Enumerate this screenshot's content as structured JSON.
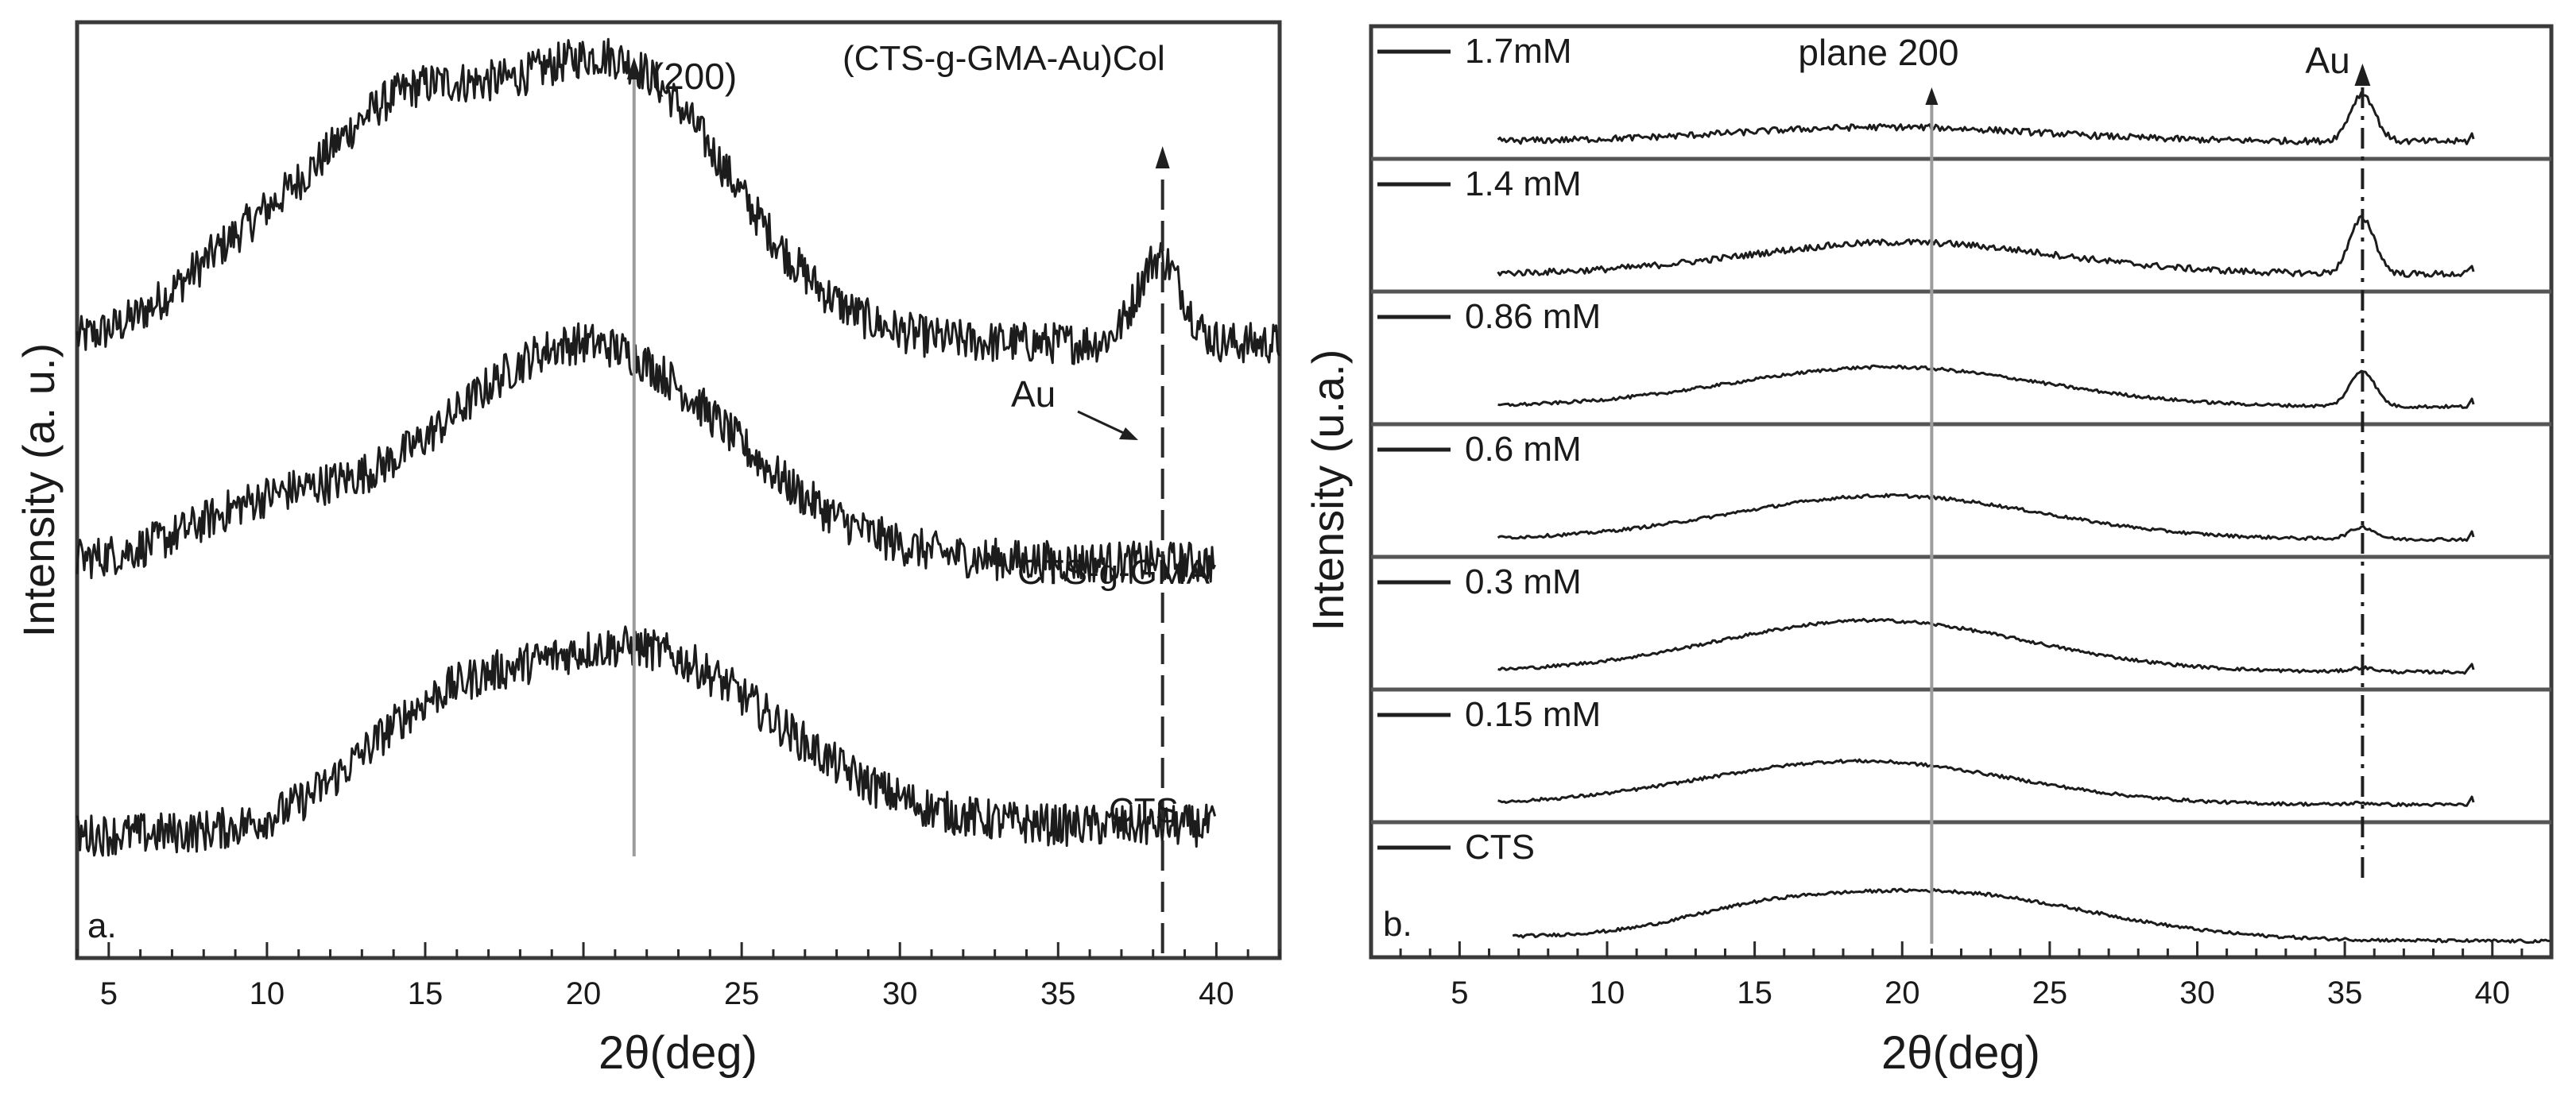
{
  "chart_data": [
    {
      "type": "line",
      "panel": "a.",
      "xlabel": "2θ(deg)",
      "ylabel": "Intensity (a. u.)",
      "xlim": [
        4,
        42
      ],
      "x_ticks": [
        5,
        10,
        15,
        20,
        25,
        30,
        35,
        40
      ],
      "y_ticks": [],
      "x_range_data": [
        4,
        40
      ],
      "series": [
        {
          "name": "(CTS-g-GMA-Au)Col",
          "label": "(CTS-g-GMA-Au)Col",
          "offset": 2.4,
          "peaks": [
            {
              "x": 9,
              "h": 0.35,
              "w": 2.2
            },
            {
              "x": 14,
              "h": 1.05,
              "w": 2.8
            },
            {
              "x": 21,
              "h": 1.45,
              "w": 3.6
            },
            {
              "x": 38.2,
              "h": 0.45,
              "w": 0.7
            }
          ],
          "base": [
            0.3,
            0.0
          ]
        },
        {
          "name": "CTS-g-GMA",
          "label": "CTS-g-GMA",
          "offset": 1.4,
          "peaks": [
            {
              "x": 10,
              "h": 0.25,
              "w": 2.5
            },
            {
              "x": 20,
              "h": 1.15,
              "w": 4.5
            }
          ],
          "base": [
            0.15,
            0.0
          ]
        },
        {
          "name": "CTS",
          "label": "CTS",
          "offset": 0.0,
          "peaks": [
            {
              "x": 15,
              "h": 0.35,
              "w": 2.5
            },
            {
              "x": 21.5,
              "h": 0.95,
              "w": 4.5
            }
          ],
          "base": [
            0.12,
            0.05
          ]
        }
      ],
      "annotations": [
        {
          "text": "(200)",
          "x": 21.6,
          "style": "solid-arrow"
        },
        {
          "text": "(CTS-g-GMA-Au)Col",
          "x": 38.3,
          "style": "dashed-arrow"
        },
        {
          "text": "Au",
          "x": 38.2,
          "style": "pointer"
        }
      ]
    },
    {
      "type": "line",
      "panel": "b.",
      "xlabel": "2θ(deg)",
      "ylabel": "Intensity (u.a.)",
      "xlim": [
        2,
        42
      ],
      "x_ticks": [
        5,
        10,
        15,
        20,
        25,
        30,
        35,
        40
      ],
      "y_ticks": [],
      "x_range_data": [
        6.3,
        39.2
      ],
      "series": [
        {
          "name": "1.7mM",
          "label": "1.7mM",
          "au_peak": 0.6,
          "broad": 0.18,
          "broad_center": 19.5
        },
        {
          "name": "1.4 mM",
          "label": "1.4 mM",
          "au_peak": 0.7,
          "broad": 0.4,
          "broad_center": 20.0
        },
        {
          "name": "0.86 mM",
          "label": "0.86 mM",
          "au_peak": 0.45,
          "broad": 0.5,
          "broad_center": 19.5
        },
        {
          "name": "0.6 mM",
          "label": "0.6 mM",
          "au_peak": 0.15,
          "broad": 0.55,
          "broad_center": 19.5
        },
        {
          "name": "0.3 mM",
          "label": "0.3 mM",
          "au_peak": 0.05,
          "broad": 0.65,
          "broad_center": 19.0
        },
        {
          "name": "0.15 mM",
          "label": "0.15 mM",
          "au_peak": 0.02,
          "broad": 0.55,
          "broad_center": 18.5
        },
        {
          "name": "CTS",
          "label": "CTS",
          "au_peak": 0.0,
          "broad": 0.6,
          "broad_center": 21.0
        }
      ],
      "annotations": [
        {
          "text": "plane 200",
          "x": 21.0,
          "style": "solid-line"
        },
        {
          "text": "Au",
          "x": 35.6,
          "style": "dashdot-arrow"
        }
      ]
    }
  ]
}
